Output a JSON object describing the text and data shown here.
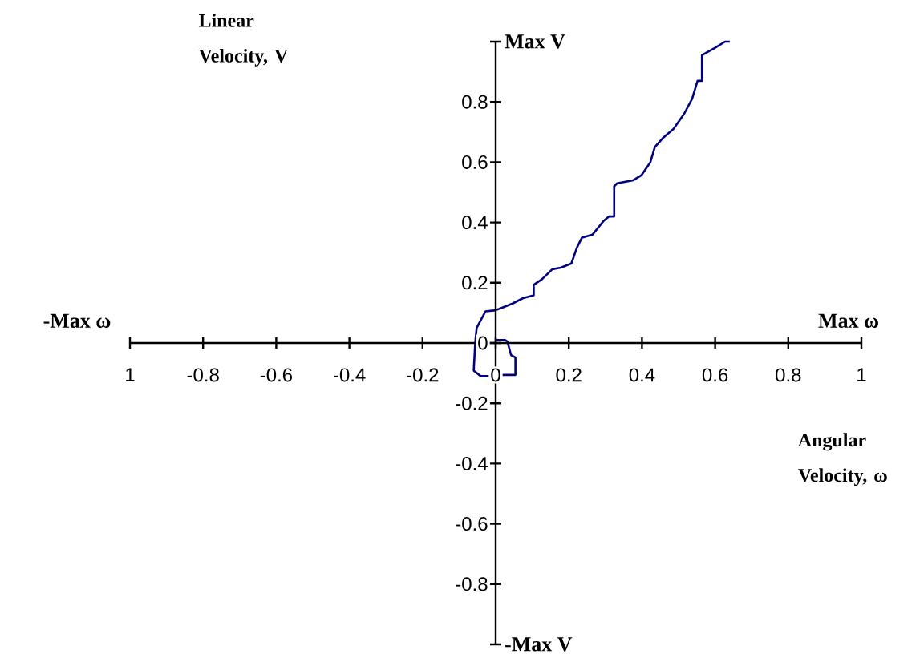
{
  "chart_data": {
    "type": "line",
    "xlabel": "Angular Velocity, ω",
    "ylabel": "Linear Velocity, V",
    "x": [
      0.64,
      0.627,
      0.6,
      0.564,
      0.564,
      0.552,
      0.537,
      0.515,
      0.486,
      0.457,
      0.435,
      0.423,
      0.398,
      0.376,
      0.332,
      0.324,
      0.324,
      0.31,
      0.295,
      0.265,
      0.236,
      0.222,
      0.207,
      0.178,
      0.155,
      0.126,
      0.104,
      0.104,
      0.075,
      0.046,
      0.009,
      -0.005,
      -0.028,
      -0.052,
      -0.056,
      -0.06,
      -0.041,
      0.007,
      0.013,
      0.054,
      0.054,
      0.042,
      0.032,
      0.025,
      0
    ],
    "series": [
      {
        "color": "#000080",
        "values": [
          1.0,
          1.0,
          0.98,
          0.955,
          0.87,
          0.87,
          0.81,
          0.76,
          0.71,
          0.68,
          0.65,
          0.6,
          0.556,
          0.54,
          0.53,
          0.52,
          0.42,
          0.42,
          0.405,
          0.36,
          0.35,
          0.316,
          0.264,
          0.25,
          0.245,
          0.211,
          0.193,
          0.158,
          0.149,
          0.131,
          0.113,
          0.108,
          0.105,
          0.05,
          0,
          -0.092,
          -0.11,
          -0.11,
          -0.106,
          -0.106,
          -0.048,
          -0.04,
          0.005,
          0.01,
          0.01
        ]
      }
    ],
    "xlim": [
      -1,
      1
    ],
    "ylim": [
      -1,
      1
    ],
    "xticks": [
      {
        "value": -1,
        "label": "1"
      },
      -0.8,
      -0.6,
      -0.4,
      -0.2,
      0,
      0.2,
      0.4,
      0.6,
      0.8,
      {
        "value": 1,
        "label": "1"
      }
    ],
    "yticks": [
      {
        "value": -1,
        "label": null
      },
      -0.8,
      -0.6,
      -0.4,
      -0.2,
      0,
      0.2,
      0.4,
      0.6,
      0.8,
      {
        "value": 1,
        "label": null
      }
    ],
    "grid": false,
    "marker": "none",
    "line_style": "solid",
    "annotations": [
      "Max V",
      "-Max V",
      "Max ω",
      "-Max ω"
    ]
  }
}
